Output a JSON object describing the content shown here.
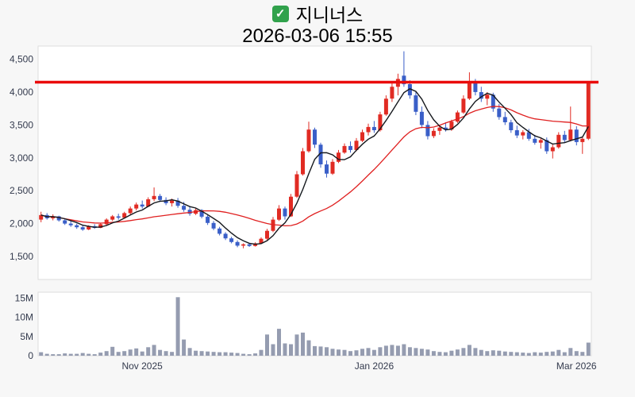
{
  "header": {
    "title": "지니너스",
    "datetime": "2026-03-06 15:55",
    "check_icon": "✓"
  },
  "colors": {
    "up": "#e12b23",
    "down": "#3a5fc8",
    "volume": "#959cb0",
    "resistance": "#ea0b0b",
    "axis_text": "#333a4d",
    "plot_border": "#dddddd",
    "plot_background": "#ffffff"
  },
  "chart_data": {
    "type": "candlestick",
    "title": "지니너스",
    "subtitle": "2026-03-06 15:55",
    "legend": "none",
    "grid": false,
    "price_axis": {
      "ticks": [
        4500,
        4000,
        3500,
        3000,
        2500,
        2000,
        1500
      ],
      "range": [
        1150,
        4700
      ]
    },
    "volume_axis": {
      "unit": "M",
      "range": [
        0,
        16.5
      ],
      "ticks": [
        {
          "v": 15,
          "label": "15M"
        },
        {
          "v": 10,
          "label": "10M"
        },
        {
          "v": 5,
          "label": "5M"
        },
        {
          "v": 0,
          "label": "0"
        }
      ]
    },
    "x_ticks": [
      {
        "index": 17,
        "label": "Nov 2025"
      },
      {
        "index": 56,
        "label": "Jan 2026"
      },
      {
        "index": 90,
        "label": "Mar 2026"
      }
    ],
    "resistance_line": 4150,
    "moving_averages": [
      {
        "window": 20,
        "color": "#e02020",
        "width": 1.3
      },
      {
        "window": 5,
        "color": "#15181d",
        "width": 1.4
      }
    ],
    "candles_format": [
      "open",
      "high",
      "low",
      "close",
      "volume_M"
    ],
    "candles": [
      [
        2060,
        2180,
        2020,
        2130,
        0.9
      ],
      [
        2130,
        2160,
        2060,
        2080,
        0.5
      ],
      [
        2080,
        2140,
        2050,
        2110,
        0.4
      ],
      [
        2110,
        2120,
        2030,
        2050,
        0.4
      ],
      [
        2050,
        2070,
        1980,
        2000,
        0.6
      ],
      [
        2000,
        2040,
        1950,
        1975,
        0.5
      ],
      [
        1975,
        2000,
        1920,
        1945,
        0.5
      ],
      [
        1945,
        1980,
        1890,
        1910,
        0.7
      ],
      [
        1910,
        1975,
        1900,
        1960,
        0.5
      ],
      [
        1960,
        1990,
        1920,
        1935,
        0.4
      ],
      [
        1935,
        2010,
        1930,
        1990,
        0.8
      ],
      [
        1990,
        2080,
        1975,
        2060,
        1.2
      ],
      [
        2060,
        2130,
        2040,
        2110,
        2.3
      ],
      [
        2110,
        2150,
        2060,
        2090,
        1.0
      ],
      [
        2090,
        2180,
        2080,
        2160,
        1.2
      ],
      [
        2160,
        2260,
        2140,
        2230,
        1.6
      ],
      [
        2230,
        2320,
        2200,
        2290,
        1.9
      ],
      [
        2290,
        2350,
        2230,
        2260,
        1.1
      ],
      [
        2260,
        2400,
        2250,
        2370,
        2.2
      ],
      [
        2370,
        2550,
        2340,
        2420,
        2.8
      ],
      [
        2420,
        2450,
        2330,
        2360,
        1.5
      ],
      [
        2360,
        2400,
        2280,
        2310,
        1.2
      ],
      [
        2310,
        2380,
        2260,
        2350,
        1.0
      ],
      [
        2350,
        2390,
        2240,
        2270,
        15.2
      ],
      [
        2270,
        2330,
        2180,
        2210,
        4.2
      ],
      [
        2210,
        2260,
        2120,
        2150,
        2.0
      ],
      [
        2150,
        2230,
        2130,
        2205,
        1.3
      ],
      [
        2205,
        2220,
        2080,
        2105,
        1.2
      ],
      [
        2105,
        2130,
        1980,
        2010,
        1.1
      ],
      [
        2010,
        2040,
        1900,
        1925,
        1.0
      ],
      [
        1925,
        1950,
        1820,
        1845,
        0.9
      ],
      [
        1845,
        1870,
        1750,
        1775,
        0.9
      ],
      [
        1775,
        1800,
        1700,
        1720,
        0.8
      ],
      [
        1720,
        1745,
        1640,
        1665,
        0.7
      ],
      [
        1665,
        1700,
        1625,
        1685,
        0.5
      ],
      [
        1685,
        1705,
        1645,
        1660,
        0.4
      ],
      [
        1660,
        1715,
        1650,
        1700,
        0.6
      ],
      [
        1700,
        1790,
        1690,
        1770,
        1.5
      ],
      [
        1770,
        1920,
        1750,
        1890,
        5.5
      ],
      [
        1890,
        2100,
        1870,
        2060,
        3.0
      ],
      [
        2060,
        2280,
        2040,
        2230,
        7.0
      ],
      [
        2230,
        2260,
        2060,
        2110,
        3.2
      ],
      [
        2110,
        2450,
        2100,
        2410,
        3.0
      ],
      [
        2410,
        2800,
        2390,
        2750,
        5.5
      ],
      [
        2750,
        3150,
        2730,
        3100,
        6.0
      ],
      [
        3100,
        3550,
        3080,
        3430,
        4.0
      ],
      [
        3430,
        3460,
        3150,
        3200,
        2.5
      ],
      [
        3200,
        3230,
        2850,
        2900,
        2.4
      ],
      [
        2900,
        2960,
        2700,
        2760,
        2.2
      ],
      [
        2760,
        2980,
        2740,
        2940,
        1.8
      ],
      [
        2940,
        3120,
        2920,
        3080,
        1.6
      ],
      [
        3080,
        3220,
        3060,
        3180,
        1.5
      ],
      [
        3180,
        3250,
        3080,
        3120,
        1.2
      ],
      [
        3120,
        3300,
        3100,
        3260,
        1.4
      ],
      [
        3260,
        3430,
        3240,
        3390,
        1.8
      ],
      [
        3390,
        3520,
        3340,
        3470,
        2.0
      ],
      [
        3470,
        3560,
        3380,
        3420,
        1.5
      ],
      [
        3420,
        3700,
        3400,
        3660,
        2.2
      ],
      [
        3660,
        3950,
        3640,
        3900,
        2.6
      ],
      [
        3900,
        4150,
        3850,
        4080,
        2.8
      ],
      [
        4080,
        4280,
        3950,
        4200,
        2.6
      ],
      [
        4250,
        4620,
        4080,
        4120,
        3.0
      ],
      [
        4120,
        4180,
        3900,
        3950,
        2.2
      ],
      [
        3950,
        4000,
        3650,
        3700,
        2.0
      ],
      [
        3700,
        3780,
        3450,
        3500,
        1.8
      ],
      [
        3500,
        3560,
        3280,
        3330,
        1.6
      ],
      [
        3330,
        3450,
        3300,
        3410,
        1.2
      ],
      [
        3410,
        3500,
        3350,
        3460,
        1.0
      ],
      [
        3460,
        3540,
        3400,
        3430,
        0.9
      ],
      [
        3430,
        3580,
        3410,
        3550,
        1.3
      ],
      [
        3550,
        3720,
        3530,
        3690,
        1.6
      ],
      [
        3690,
        3950,
        3670,
        3900,
        2.0
      ],
      [
        3900,
        4300,
        3880,
        4150,
        2.8
      ],
      [
        4150,
        4200,
        3950,
        4000,
        2.0
      ],
      [
        4000,
        4080,
        3850,
        3900,
        1.5
      ],
      [
        3900,
        4000,
        3800,
        3960,
        1.2
      ],
      [
        3960,
        3990,
        3700,
        3750,
        1.4
      ],
      [
        3750,
        3820,
        3580,
        3620,
        1.3
      ],
      [
        3620,
        3700,
        3500,
        3540,
        1.1
      ],
      [
        3540,
        3580,
        3380,
        3420,
        1.0
      ],
      [
        3420,
        3490,
        3300,
        3340,
        0.9
      ],
      [
        3340,
        3420,
        3280,
        3390,
        0.8
      ],
      [
        3390,
        3440,
        3260,
        3290,
        0.7
      ],
      [
        3290,
        3350,
        3200,
        3230,
        0.9
      ],
      [
        3230,
        3300,
        3140,
        3270,
        0.8
      ],
      [
        3270,
        3310,
        3060,
        3100,
        1.0
      ],
      [
        3100,
        3200,
        2990,
        3160,
        1.1
      ],
      [
        3160,
        3390,
        3140,
        3350,
        1.5
      ],
      [
        3350,
        3410,
        3230,
        3270,
        0.9
      ],
      [
        3270,
        3780,
        3250,
        3430,
        2.0
      ],
      [
        3430,
        3480,
        3190,
        3240,
        1.2
      ],
      [
        3240,
        3310,
        3060,
        3290,
        1.0
      ],
      [
        3290,
        4150,
        3270,
        4150,
        3.4
      ]
    ]
  }
}
